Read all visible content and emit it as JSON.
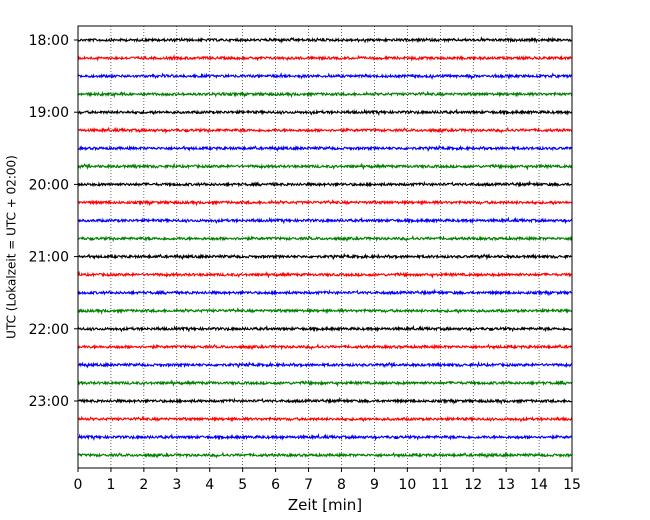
{
  "chart_data": {
    "type": "line",
    "title": "",
    "xlabel": "Zeit  [min]",
    "ylabel": "UTC (Lokalzeit = UTC + 02:00)",
    "xlim": [
      0,
      15
    ],
    "x_ticks": [
      "0",
      "1",
      "2",
      "3",
      "4",
      "5",
      "6",
      "7",
      "8",
      "9",
      "10",
      "11",
      "12",
      "13",
      "14",
      "15"
    ],
    "y_ticks": [
      "18:00",
      "19:00",
      "20:00",
      "21:00",
      "22:00",
      "23:00"
    ],
    "grid": "vertical dotted lines at each minute",
    "legend": "none",
    "trace_interval_minutes": 15,
    "trace_start": "18:00",
    "trace_end": "23:45",
    "trace_colors": [
      "#000000",
      "#ff0000",
      "#0000ff",
      "#008000"
    ],
    "series": [
      {
        "start": "18:00",
        "color": "#000000"
      },
      {
        "start": "18:15",
        "color": "#ff0000"
      },
      {
        "start": "18:30",
        "color": "#0000ff"
      },
      {
        "start": "18:45",
        "color": "#008000"
      },
      {
        "start": "19:00",
        "color": "#000000"
      },
      {
        "start": "19:15",
        "color": "#ff0000"
      },
      {
        "start": "19:30",
        "color": "#0000ff"
      },
      {
        "start": "19:45",
        "color": "#008000"
      },
      {
        "start": "20:00",
        "color": "#000000"
      },
      {
        "start": "20:15",
        "color": "#ff0000"
      },
      {
        "start": "20:30",
        "color": "#0000ff"
      },
      {
        "start": "20:45",
        "color": "#008000"
      },
      {
        "start": "21:00",
        "color": "#000000"
      },
      {
        "start": "21:15",
        "color": "#ff0000"
      },
      {
        "start": "21:30",
        "color": "#0000ff"
      },
      {
        "start": "21:45",
        "color": "#008000"
      },
      {
        "start": "22:00",
        "color": "#000000"
      },
      {
        "start": "22:15",
        "color": "#ff0000"
      },
      {
        "start": "22:30",
        "color": "#0000ff"
      },
      {
        "start": "22:45",
        "color": "#008000"
      },
      {
        "start": "23:00",
        "color": "#000000"
      },
      {
        "start": "23:15",
        "color": "#ff0000"
      },
      {
        "start": "23:30",
        "color": "#0000ff"
      },
      {
        "start": "23:45",
        "color": "#008000"
      }
    ]
  }
}
